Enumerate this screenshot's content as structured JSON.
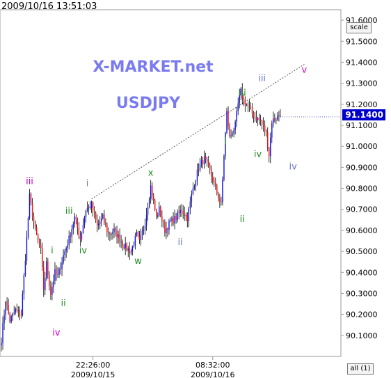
{
  "header": {
    "timestamp": "2009/10/16 13:51:03"
  },
  "controls": {
    "scale_label": "scale",
    "all_label": "all (1)"
  },
  "chart_data": {
    "type": "candlestick",
    "symbol": "USDJPY",
    "watermark": "X-MARKET.net",
    "title": "USDJPY",
    "current_price": "91.1400",
    "ylim": [
      90.0,
      91.65
    ],
    "y_ticks": [
      "91.6000",
      "91.5000",
      "91.4000",
      "91.3000",
      "91.2000",
      "91.1000",
      "91.0000",
      "90.9000",
      "90.8000",
      "90.7000",
      "90.6000",
      "90.5000",
      "90.4000",
      "90.3000",
      "90.2000",
      "90.1000"
    ],
    "x_labels": [
      {
        "time": "22:26:00",
        "date": "2009/10/15",
        "bar": 65
      },
      {
        "time": "08:32:00",
        "date": "2009/10/16",
        "bar": 150
      }
    ],
    "colors": {
      "up": "#1010ee",
      "down": "#ee1010",
      "wick": "#000000",
      "grid": "#cccccc",
      "axis": "#999999"
    },
    "path": [
      [
        0,
        90.08
      ],
      [
        3,
        90.27
      ],
      [
        6,
        90.17
      ],
      [
        10,
        90.22
      ],
      [
        14,
        90.2
      ],
      [
        18,
        90.56
      ],
      [
        20,
        90.76
      ],
      [
        24,
        90.6
      ],
      [
        28,
        90.5
      ],
      [
        30,
        90.32
      ],
      [
        32,
        90.44
      ],
      [
        35,
        90.3
      ],
      [
        38,
        90.4
      ],
      [
        40,
        90.38
      ],
      [
        44,
        90.48
      ],
      [
        48,
        90.56
      ],
      [
        52,
        90.66
      ],
      [
        56,
        90.56
      ],
      [
        60,
        90.7
      ],
      [
        64,
        90.72
      ],
      [
        68,
        90.62
      ],
      [
        72,
        90.66
      ],
      [
        76,
        90.58
      ],
      [
        80,
        90.6
      ],
      [
        84,
        90.56
      ],
      [
        88,
        90.52
      ],
      [
        92,
        90.5
      ],
      [
        96,
        90.58
      ],
      [
        98,
        90.54
      ],
      [
        102,
        90.64
      ],
      [
        106,
        90.81
      ],
      [
        110,
        90.66
      ],
      [
        112,
        90.7
      ],
      [
        116,
        90.6
      ],
      [
        120,
        90.64
      ],
      [
        124,
        90.66
      ],
      [
        128,
        90.7
      ],
      [
        132,
        90.66
      ],
      [
        136,
        90.8
      ],
      [
        140,
        90.9
      ],
      [
        144,
        90.94
      ],
      [
        148,
        90.88
      ],
      [
        152,
        90.8
      ],
      [
        156,
        90.72
      ],
      [
        158,
        90.96
      ],
      [
        160,
        91.16
      ],
      [
        162,
        91.04
      ],
      [
        166,
        91.1
      ],
      [
        168,
        91.2
      ],
      [
        170,
        91.26
      ],
      [
        172,
        91.22
      ],
      [
        176,
        91.18
      ],
      [
        180,
        91.14
      ],
      [
        184,
        91.12
      ],
      [
        188,
        91.06
      ],
      [
        190,
        90.96
      ],
      [
        192,
        91.12
      ],
      [
        196,
        91.14
      ],
      [
        198,
        91.16
      ]
    ],
    "trendline": {
      "from": [
        64,
        90.75
      ],
      "to": [
        215,
        91.39
      ]
    },
    "annotations": [
      {
        "text": "iii",
        "bar": 20,
        "price": 90.82,
        "color": "#cc00cc"
      },
      {
        "text": "i",
        "bar": 36,
        "price": 90.49,
        "color": "#228b22"
      },
      {
        "text": "ii",
        "bar": 44,
        "price": 90.24,
        "color": "#228b22"
      },
      {
        "text": "iv",
        "bar": 39,
        "price": 90.1,
        "color": "#cc00cc"
      },
      {
        "text": "iii",
        "bar": 48,
        "price": 90.68,
        "color": "#228b22"
      },
      {
        "text": "iv",
        "bar": 58,
        "price": 90.49,
        "color": "#228b22"
      },
      {
        "text": "i",
        "bar": 61,
        "price": 90.81,
        "color": "#6677cc"
      },
      {
        "text": "x",
        "bar": 106,
        "price": 90.86,
        "color": "#228b22"
      },
      {
        "text": "w",
        "bar": 97,
        "price": 90.44,
        "color": "#228b22"
      },
      {
        "text": "ii",
        "bar": 127,
        "price": 90.53,
        "color": "#6677cc"
      },
      {
        "text": "i",
        "bar": 159,
        "price": 91.01,
        "color": "#228b22"
      },
      {
        "text": "ii",
        "bar": 171,
        "price": 90.64,
        "color": "#228b22"
      },
      {
        "text": "iii",
        "bar": 171,
        "price": 91.24,
        "color": "#228b22"
      },
      {
        "text": "iv",
        "bar": 182,
        "price": 90.95,
        "color": "#228b22"
      },
      {
        "text": "iii",
        "bar": 185,
        "price": 91.31,
        "color": "#6677cc"
      },
      {
        "text": "iv",
        "bar": 207,
        "price": 90.89,
        "color": "#6677cc"
      },
      {
        "text": "v",
        "bar": 215,
        "price": 91.35,
        "color": "#cc00cc"
      }
    ]
  }
}
